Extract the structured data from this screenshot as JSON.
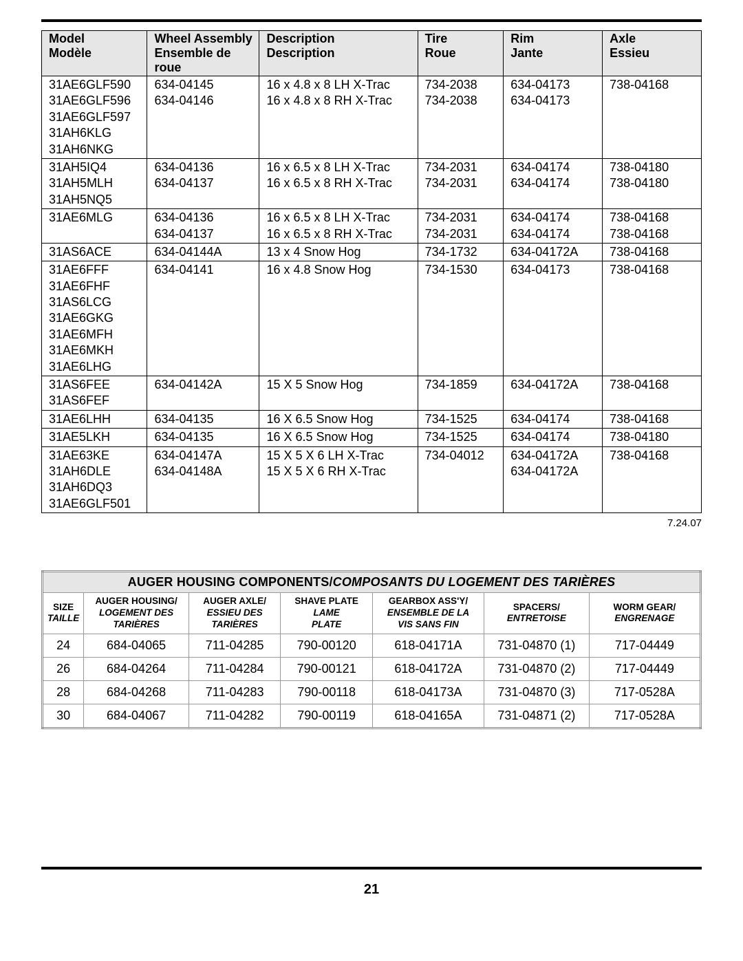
{
  "page_number": "21",
  "date_note": "7.24.07",
  "table1": {
    "headers": {
      "model_en": "Model",
      "model_fr": "Modèle",
      "wheel_en": "Wheel Assembly",
      "wheel_fr": "Ensemble de roue",
      "desc_en": "Description",
      "desc_fr": "Description",
      "tire_en": "Tire",
      "tire_fr": "Roue",
      "rim_en": "Rim",
      "rim_fr": "Jante",
      "axle_en": "Axle",
      "axle_fr": "Essieu"
    },
    "col_widths": [
      "16%",
      "17%",
      "24%",
      "13%",
      "15%",
      "15%"
    ],
    "rows": [
      {
        "model": [
          "31AE6GLF590",
          "31AE6GLF596",
          "31AE6GLF597",
          "31AH6KLG",
          "31AH6NKG"
        ],
        "wheel": [
          "634-04145",
          "634-04146"
        ],
        "desc": [
          "16 x 4.8 x 8 LH X-Trac",
          "16 x 4.8 x 8 RH X-Trac"
        ],
        "tire": [
          "734-2038",
          "734-2038"
        ],
        "rim": [
          "634-04173",
          "634-04173"
        ],
        "axle": [
          "738-04168"
        ]
      },
      {
        "model": [
          "31AH5IQ4",
          "31AH5MLH",
          "31AH5NQ5"
        ],
        "wheel": [
          "634-04136",
          "634-04137"
        ],
        "desc": [
          "16 x 6.5 x 8 LH X-Trac",
          "16 x 6.5 x 8 RH X-Trac"
        ],
        "tire": [
          "734-2031",
          "734-2031"
        ],
        "rim": [
          "634-04174",
          "634-04174"
        ],
        "axle": [
          "738-04180",
          "738-04180"
        ]
      },
      {
        "model": [
          "31AE6MLG"
        ],
        "wheel": [
          "634-04136",
          "634-04137"
        ],
        "desc": [
          "16 x 6.5 x 8 LH X-Trac",
          "16 x 6.5 x 8 RH X-Trac"
        ],
        "tire": [
          "734-2031",
          "734-2031"
        ],
        "rim": [
          "634-04174",
          "634-04174"
        ],
        "axle": [
          "738-04168",
          "738-04168"
        ]
      },
      {
        "model": [
          "31AS6ACE"
        ],
        "wheel": [
          "634-04144A"
        ],
        "desc": [
          "13 x 4 Snow Hog"
        ],
        "tire": [
          "734-1732"
        ],
        "rim": [
          "634-04172A"
        ],
        "axle": [
          "738-04168"
        ]
      },
      {
        "model": [
          "31AE6FFF",
          "31AE6FHF",
          "31AS6LCG",
          "31AE6GKG",
          "31AE6MFH",
          "31AE6MKH",
          "31AE6LHG"
        ],
        "wheel": [
          "634-04141"
        ],
        "desc": [
          "16 x 4.8 Snow Hog"
        ],
        "tire": [
          "734-1530"
        ],
        "rim": [
          "634-04173"
        ],
        "axle": [
          "738-04168"
        ]
      },
      {
        "model": [
          "31AS6FEE",
          "31AS6FEF"
        ],
        "wheel": [
          "634-04142A"
        ],
        "desc": [
          "15 X 5 Snow Hog"
        ],
        "tire": [
          "734-1859"
        ],
        "rim": [
          "634-04172A"
        ],
        "axle": [
          "738-04168"
        ]
      },
      {
        "model": [
          "31AE6LHH"
        ],
        "wheel": [
          "634-04135"
        ],
        "desc": [
          "16 X 6.5 Snow Hog"
        ],
        "tire": [
          "734-1525"
        ],
        "rim": [
          "634-04174"
        ],
        "axle": [
          "738-04168"
        ]
      },
      {
        "model": [
          "31AE5LKH"
        ],
        "wheel": [
          "634-04135"
        ],
        "desc": [
          "16 X 6.5 Snow Hog"
        ],
        "tire": [
          "734-1525"
        ],
        "rim": [
          "634-04174"
        ],
        "axle": [
          "738-04180"
        ]
      },
      {
        "model": [
          "31AE63KE",
          "31AH6DLE",
          "31AH6DQ3",
          "31AE6GLF501"
        ],
        "wheel": [
          "634-04147A",
          "634-04148A"
        ],
        "desc": [
          "15 X 5 X 6 LH X-Trac",
          "15 X 5 X 6 RH X-Trac"
        ],
        "tire": [
          "734-04012"
        ],
        "rim": [
          "634-04172A",
          "634-04172A"
        ],
        "axle": [
          "738-04168"
        ]
      }
    ]
  },
  "table2": {
    "title_en": "AUGER HOUSING COMPONENTS/",
    "title_fr": "COMPOSANTS DU LOGEMENT DES TARIÈRES",
    "headers": [
      {
        "en": "SIZE",
        "fr": "TAILLE"
      },
      {
        "en": "AUGER HOUSING/",
        "fr": "LOGEMENT DES",
        "fr2": "TARIÈRES"
      },
      {
        "en": "AUGER AXLE/",
        "fr": "ESSIEU DES",
        "fr2": "TARIÈRES"
      },
      {
        "en": "SHAVE PLATE",
        "fr": "LAME",
        "fr2": "PLATE"
      },
      {
        "en": "GEARBOX ASS'Y/",
        "fr": "ENSEMBLE DE LA",
        "fr2": "VIS SANS FIN"
      },
      {
        "en": "SPACERS/",
        "fr": "ENTRETOISE"
      },
      {
        "en": "WORM GEAR/",
        "fr": "ENGRENAGE"
      }
    ],
    "col_widths": [
      "6%",
      "16%",
      "14%",
      "14%",
      "17%",
      "16%",
      "17%"
    ],
    "rows": [
      [
        "24",
        "684-04065",
        "711-04285",
        "790-00120",
        "618-04171A",
        "731-04870 (1)",
        "717-04449"
      ],
      [
        "26",
        "684-04264",
        "711-04284",
        "790-00121",
        "618-04172A",
        "731-04870 (2)",
        "717-04449"
      ],
      [
        "28",
        "684-04268",
        "711-04283",
        "790-00118",
        "618-04173A",
        "731-04870 (3)",
        "717-0528A"
      ],
      [
        "30",
        "684-04067",
        "711-04282",
        "790-00119",
        "618-04165A",
        "731-04871 (2)",
        "717-0528A"
      ]
    ]
  }
}
